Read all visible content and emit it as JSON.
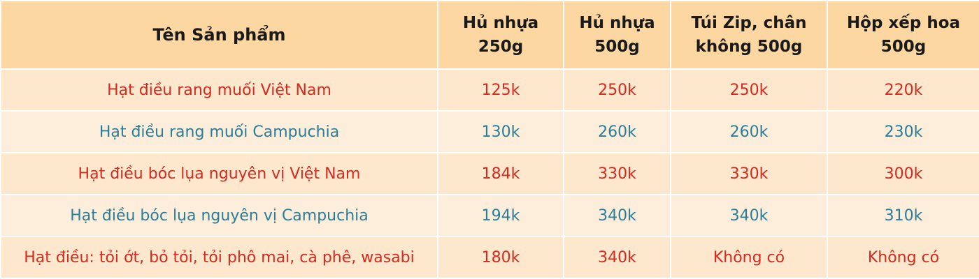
{
  "table": {
    "header": [
      "Tên Sản phẩm",
      "Hủ nhựa 250g",
      "Hủ nhựa 500g",
      "Túi Zip, chân không 500g",
      "Hộp xếp hoa 500g"
    ],
    "rows": [
      [
        "Hạt điều rang muối Việt Nam",
        "125k",
        "250k",
        "250k",
        "220k"
      ],
      [
        "Hạt điều rang muối Campuchia",
        "130k",
        "260k",
        "260k",
        "230k"
      ],
      [
        "Hạt điều bóc lụa nguyên vị Việt Nam",
        "184k",
        "330k",
        "330k",
        "300k"
      ],
      [
        "Hạt điều bóc lụa nguyên vị Campuchia",
        "194k",
        "340k",
        "340k",
        "310k"
      ],
      [
        "Hạt điều: tỏi ớt, bỏ tỏi, tỏi phô mai, cà phê, wasabi",
        "180k",
        "340k",
        "Không có",
        "Không có"
      ]
    ]
  }
}
